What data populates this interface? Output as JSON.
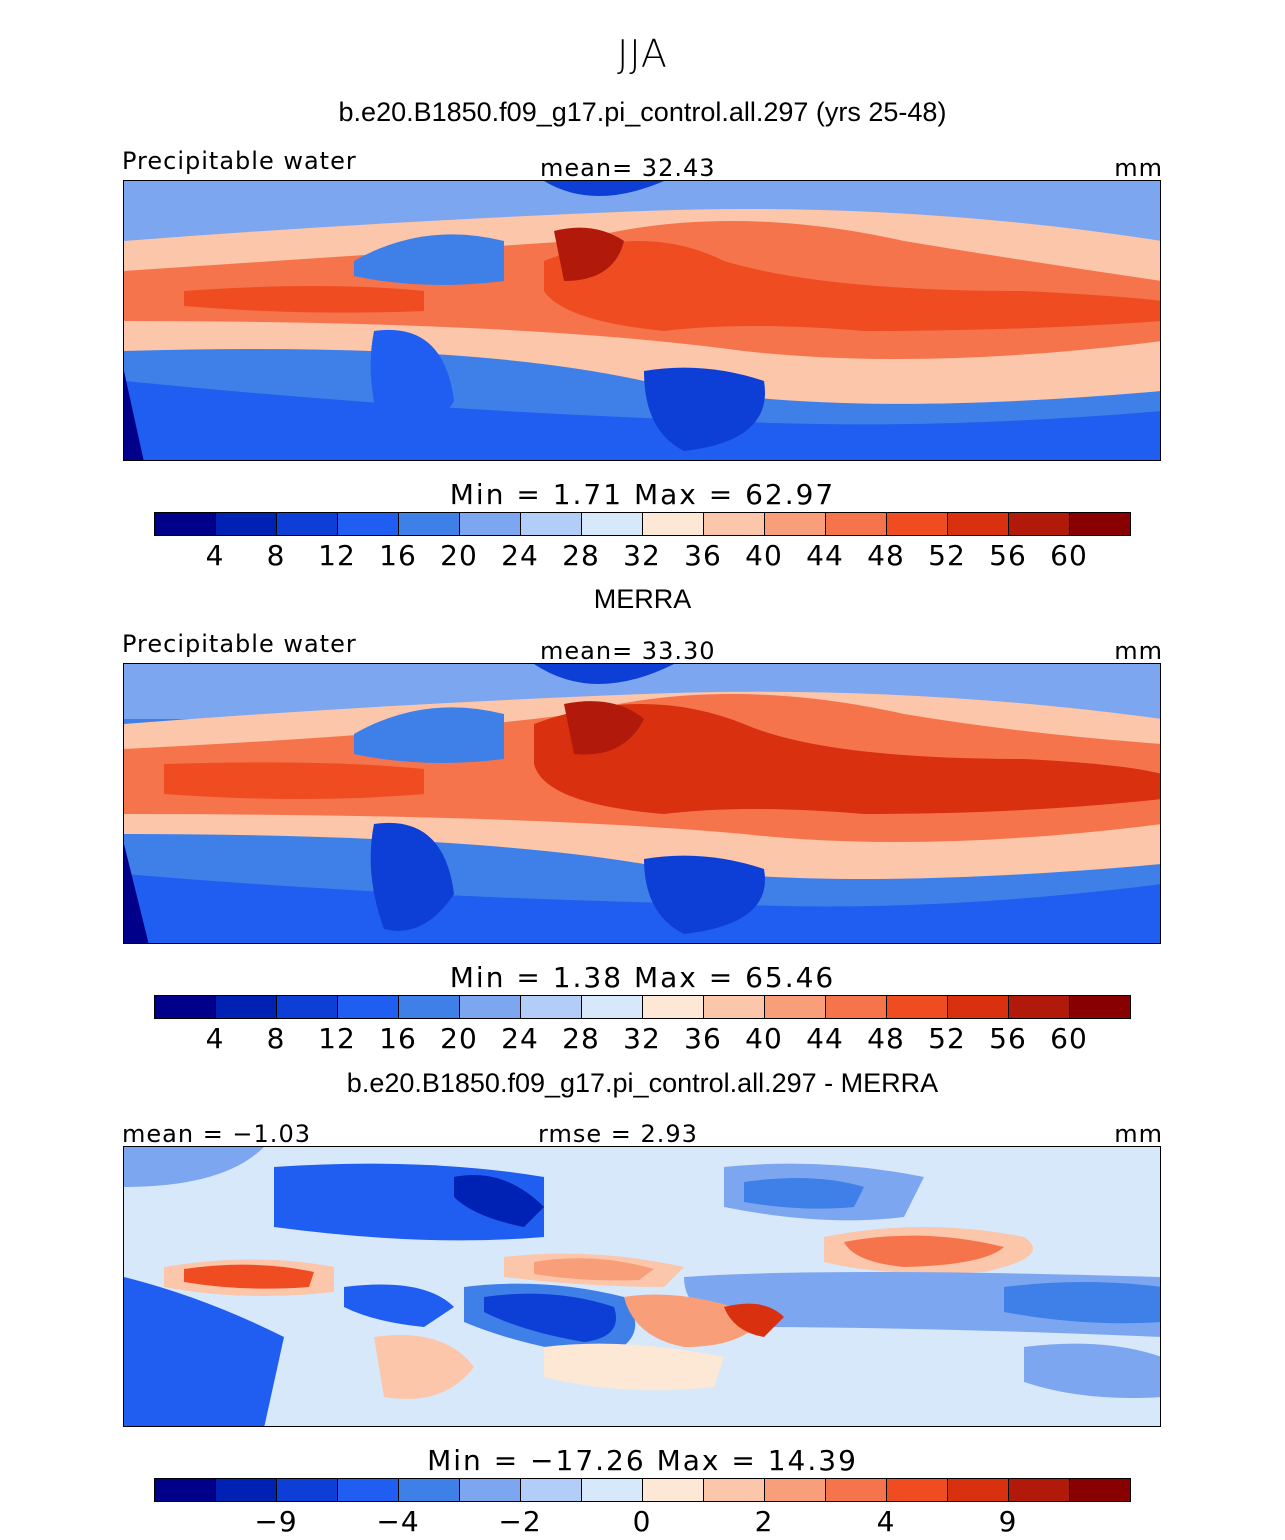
{
  "season": "JJA",
  "colors": {
    "abs": [
      "#00008b",
      "#0022b4",
      "#0d3fd6",
      "#1f5ef0",
      "#3f7fe8",
      "#7da6f0",
      "#b2cdf8",
      "#d8e8fb",
      "#fde8d6",
      "#fbc6aa",
      "#f89e78",
      "#f5744c",
      "#ef4c22",
      "#d9300f",
      "#b11a0a",
      "#880000"
    ],
    "land": "#000000"
  },
  "panels": [
    {
      "title": "b.e20.B1850.f09_g17.pi_control.all.297 (yrs 25-48)",
      "left_label": "Precipitable water",
      "center_label": "mean=  32.43",
      "right_label": "mm",
      "minmax": "Min =    1.71  Max =   62.97",
      "ticks": [
        "4",
        "8",
        "12",
        "16",
        "20",
        "24",
        "28",
        "32",
        "36",
        "40",
        "44",
        "48",
        "52",
        "56",
        "60"
      ]
    },
    {
      "title": "MERRA",
      "left_label": "Precipitable water",
      "center_label": "mean=  33.30",
      "right_label": "mm",
      "minmax": "Min =    1.38  Max =   65.46",
      "ticks": [
        "4",
        "8",
        "12",
        "16",
        "20",
        "24",
        "28",
        "32",
        "36",
        "40",
        "44",
        "48",
        "52",
        "56",
        "60"
      ]
    },
    {
      "title": "b.e20.B1850.f09_g17.pi_control.all.297 - MERRA",
      "left_label": "mean =  −1.03",
      "center_label": "rmse =    2.93",
      "right_label": "mm",
      "minmax": "Min = −17.26  Max =   14.39",
      "ticks": [
        "−9",
        "−4",
        "−2",
        "0",
        "2",
        "4",
        "9"
      ]
    }
  ]
}
